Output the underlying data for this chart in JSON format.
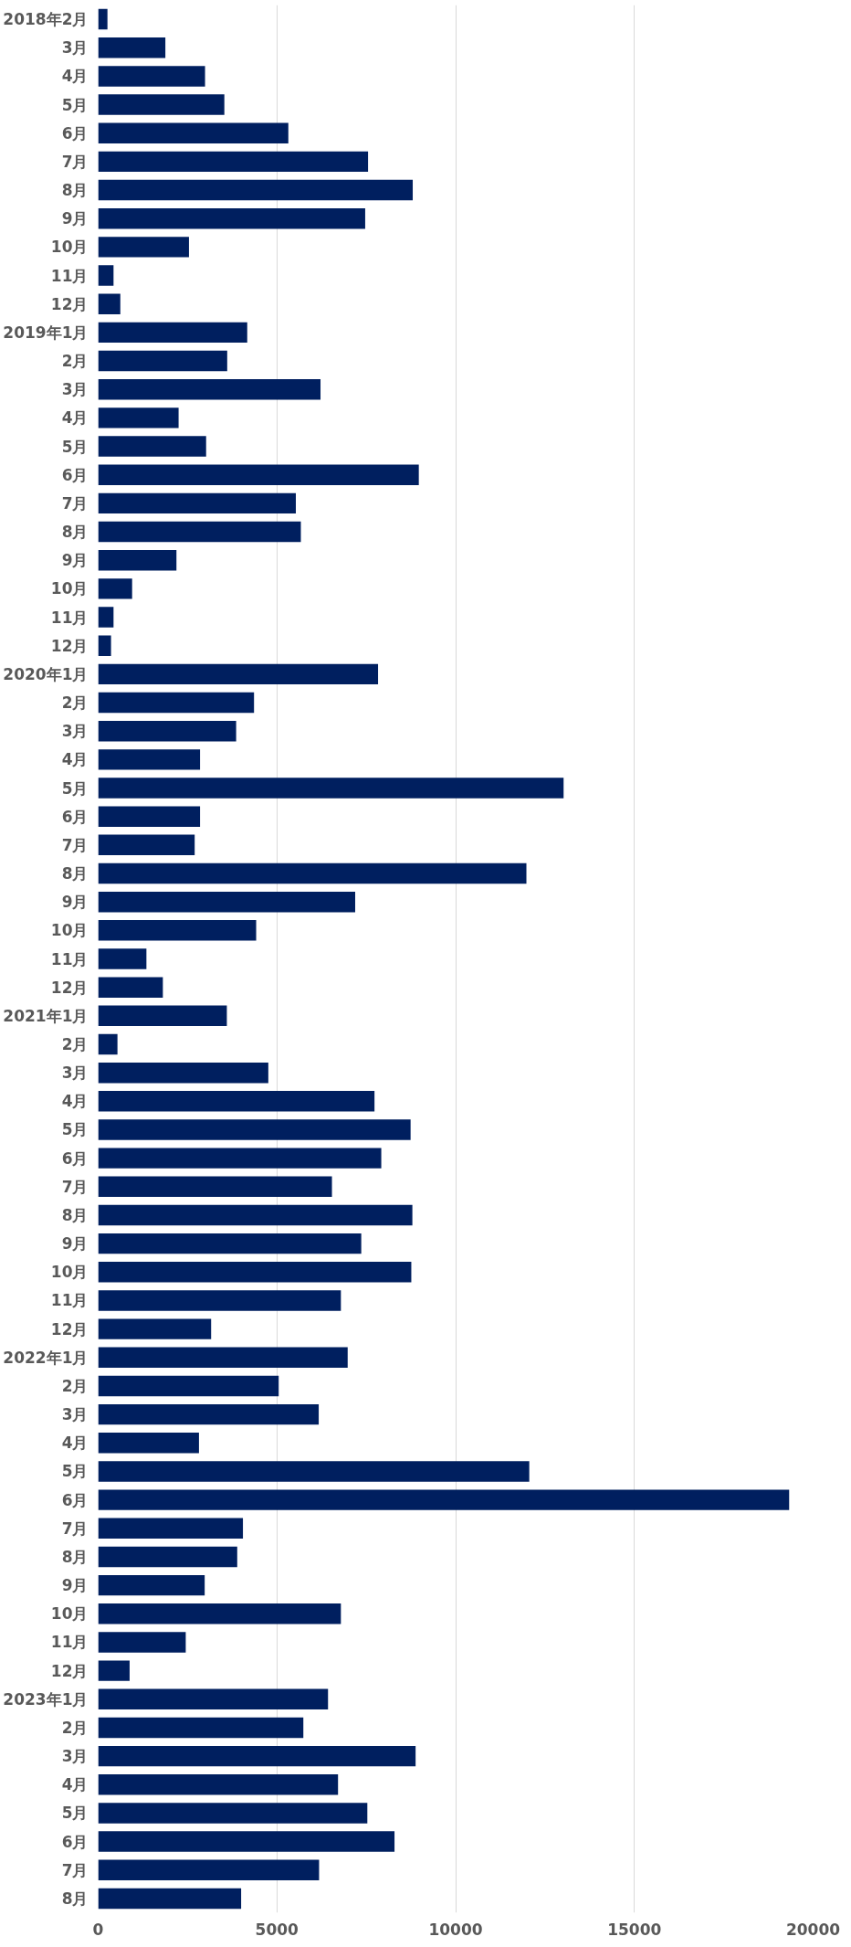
{
  "chart_data": {
    "type": "bar",
    "orientation": "horizontal",
    "categories": [
      "2018年2月",
      "3月",
      "4月",
      "5月",
      "6月",
      "7月",
      "8月",
      "9月",
      "10月",
      "11月",
      "12月",
      "2019年1月",
      "2月",
      "3月",
      "4月",
      "5月",
      "6月",
      "7月",
      "8月",
      "9月",
      "10月",
      "11月",
      "12月",
      "2020年1月",
      "2月",
      "3月",
      "4月",
      "5月",
      "6月",
      "7月",
      "8月",
      "9月",
      "10月",
      "11月",
      "12月",
      "2021年1月",
      "2月",
      "3月",
      "4月",
      "5月",
      "6月",
      "7月",
      "8月",
      "9月",
      "10月",
      "11月",
      "12月",
      "2022年1月",
      "2月",
      "3月",
      "4月",
      "5月",
      "6月",
      "7月",
      "8月",
      "9月",
      "10月",
      "11月",
      "12月",
      "2023年1月",
      "2月",
      "3月",
      "4月",
      "5月",
      "6月",
      "7月",
      "8月"
    ],
    "values": [
      260,
      1880,
      2990,
      3530,
      5320,
      7550,
      8800,
      7470,
      2540,
      430,
      620,
      4170,
      3610,
      6220,
      2250,
      3020,
      8970,
      5530,
      5670,
      2190,
      950,
      430,
      360,
      7830,
      4360,
      3860,
      2850,
      13020,
      2850,
      2700,
      11980,
      7190,
      4420,
      1350,
      1810,
      3600,
      540,
      4760,
      7730,
      8740,
      7920,
      6540,
      8790,
      7360,
      8760,
      6790,
      3160,
      6980,
      5050,
      6170,
      2820,
      12060,
      19330,
      4050,
      3890,
      2980,
      6790,
      2450,
      880,
      6430,
      5740,
      8880,
      6710,
      7530,
      8290,
      6180,
      4000
    ],
    "color": "#001f5f",
    "xlim": [
      0,
      20000
    ],
    "xticks": [
      0,
      5000,
      10000,
      15000,
      20000
    ],
    "grid": "x"
  }
}
